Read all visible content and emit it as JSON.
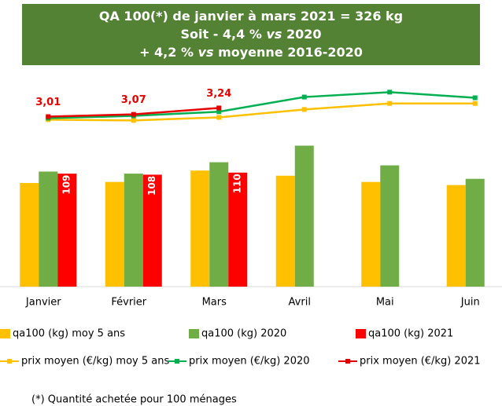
{
  "chart_data": {
    "type": "combo",
    "title": [
      [
        {
          "text": "QA 100(*) de janvier à mars 2021 = 326 kg"
        }
      ],
      [
        {
          "text": "Soit  - 4,4 % "
        },
        {
          "text": "vs",
          "italic": true
        },
        {
          "text": "  2020"
        }
      ],
      [
        {
          "text": "+ 4,2 % "
        },
        {
          "text": "vs",
          "italic": true
        },
        {
          "text": " moyenne 2016-2020"
        }
      ]
    ],
    "title_color": "#548235",
    "categories": [
      "Janvier",
      "Février",
      "Mars",
      "Avril",
      "Mai",
      "Juin"
    ],
    "ylim": [
      0,
      200
    ],
    "y2lim": [
      -1.5,
      4.0
    ],
    "series": [
      {
        "name": "qa100 (kg) moy 5 ans",
        "type": "bar",
        "color": "#ffc000",
        "values": [
          100,
          101,
          112,
          107,
          101,
          98
        ]
      },
      {
        "name": "qa100 (kg) 2020",
        "type": "bar",
        "color": "#70ad47",
        "values": [
          111,
          109,
          120,
          136,
          117,
          104
        ]
      },
      {
        "name": "qa100 (kg) 2021",
        "type": "bar",
        "color": "#ff0000",
        "values": [
          109,
          108,
          110,
          null,
          null,
          null
        ],
        "labels_inside": true
      },
      {
        "name": "prix moyen (€/kg) moy 5 ans",
        "type": "line",
        "axis": "y2",
        "color": "#ffc000",
        "values": [
          2.93,
          2.91,
          2.99,
          3.2,
          3.36,
          3.36
        ]
      },
      {
        "name": "prix moyen (€/kg) 2020",
        "type": "line",
        "axis": "y2",
        "color": "#00b050",
        "values": [
          2.97,
          3.03,
          3.14,
          3.53,
          3.66,
          3.51
        ]
      },
      {
        "name": "prix moyen (€/kg) 2021",
        "type": "line",
        "axis": "y2",
        "color": "#e60000",
        "values": [
          3.01,
          3.07,
          3.24,
          null,
          null,
          null
        ],
        "value_labels": [
          "3,01",
          "3,07",
          "3,24",
          null,
          null,
          null
        ]
      }
    ],
    "footnote": "(*) Quantité achetée pour 100 ménages"
  }
}
